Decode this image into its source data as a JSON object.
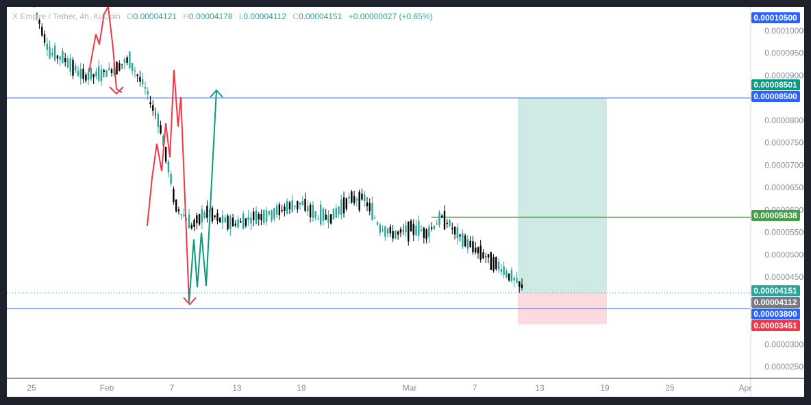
{
  "legend": {
    "symbol": "X Empire / Tether, 4h, KuCoin",
    "o_label": "O",
    "o": "0.00004121",
    "h_label": "H",
    "h": "0.00004178",
    "l_label": "L",
    "l": "0.00004112",
    "c_label": "C",
    "c": "0.00004151",
    "change": "+0.00000027 (+0.65%)"
  },
  "chart_data": {
    "type": "candlestick",
    "title": "X Empire / Tether, 4h, KuCoin",
    "ylim": [
      2e-05,
      0.000108
    ],
    "y_ticks": [
      "0.00010000",
      "0.00009500",
      "0.00009000",
      "0.00008000",
      "0.00007500",
      "0.00007000",
      "0.00006500",
      "0.00006000",
      "0.00005500",
      "0.00005000",
      "0.00004500",
      "0.00003000",
      "0.00002500"
    ],
    "x_ticks": [
      "25",
      "Feb",
      "7",
      "13",
      "19",
      "Mar",
      "7",
      "13",
      "19",
      "25",
      "Apr"
    ],
    "price_path": [
      [
        0.000108,
        0.000103
      ],
      [
        0.0001,
        9e-05
      ],
      [
        9.6e-05,
        9.1e-05
      ],
      [
        9.2e-05,
        8.8e-05
      ],
      [
        9e-05,
        9e-05
      ],
      [
        9.4e-05,
        8.9e-05
      ],
      [
        9.6e-05,
        9.1e-05
      ],
      [
        9e-05,
        8.5e-05
      ],
      [
        8.3e-05,
        7.5e-05
      ],
      [
        7e-05,
        5.2e-05
      ],
      [
        5.5e-05,
        5.8e-05
      ],
      [
        6.2e-05,
        5.7e-05
      ],
      [
        6e-05,
        5.5e-05
      ],
      [
        5.7e-05,
        5.7e-05
      ],
      [
        5.9e-05,
        5.8e-05
      ],
      [
        6e-05,
        5.8e-05
      ],
      [
        6.1e-05,
        6e-05
      ],
      [
        6.3e-05,
        6e-05
      ],
      [
        6.1e-05,
        5.6e-05
      ],
      [
        5.8e-05,
        5.9e-05
      ],
      [
        6.2e-05,
        6.3e-05
      ],
      [
        6.5e-05,
        6e-05
      ],
      [
        5.8e-05,
        5.4e-05
      ],
      [
        5.2e-05,
        5.7e-05
      ],
      [
        5.7e-05,
        5.5e-05
      ],
      [
        5.4e-05,
        5.6e-05
      ],
      [
        5.8e-05,
        5.9e-05
      ],
      [
        5.6e-05,
        5.2e-05
      ],
      [
        5.2e-05,
        5.1e-05
      ],
      [
        5e-05,
        4.8e-05
      ],
      [
        4.7e-05,
        4.5e-05
      ],
      [
        4.4e-05,
        4.15e-05
      ]
    ],
    "levels": [
      {
        "price": 0.000105,
        "label": "0.00010500",
        "color": "#2962ff"
      },
      {
        "price": 8.501e-05,
        "label": "0.00008501",
        "color": "#089981"
      },
      {
        "price": 8.5e-05,
        "label": "0.00008500",
        "color": "#2962ff"
      },
      {
        "price": 5.838e-05,
        "label": "0.00005838",
        "color": "#43a047"
      },
      {
        "price": 4.151e-05,
        "label": "0.00004151",
        "color": "#26a69a"
      },
      {
        "price": 4.112e-05,
        "label": "0.00004112",
        "color": "#787b86"
      },
      {
        "price": 3.8e-05,
        "label": "0.00003800",
        "color": "#2962ff"
      },
      {
        "price": 3.451e-05,
        "label": "0.00003451",
        "color": "#f23645"
      }
    ],
    "position": {
      "entry": 4.15e-05,
      "target": 8.5e-05,
      "stop": 3.451e-05
    },
    "colors": {
      "up": "#26a69a",
      "down": "#000000",
      "projection_down": "#f23645",
      "projection_up": "#089981",
      "hline": "#2962ff",
      "level": "#43a047",
      "profit_zone": "#cfeae4",
      "loss_zone": "#fcdadd"
    }
  }
}
